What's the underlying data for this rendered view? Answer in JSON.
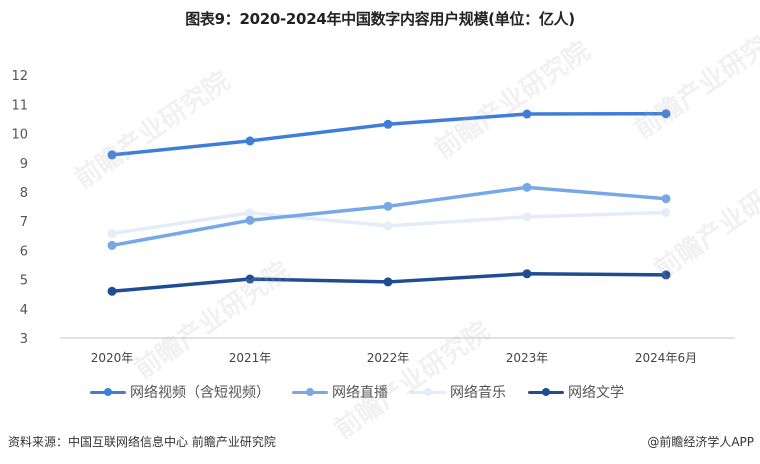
{
  "title": "图表9：2020-2024年中国数字内容用户规模(单位：亿人)",
  "chart_data": {
    "type": "line",
    "title": "图表9：2020-2024年中国数字内容用户规模(单位：亿人)",
    "xlabel": "",
    "ylabel": "亿人",
    "categories": [
      "2020年",
      "2021年",
      "2022年",
      "2023年",
      "2024年6月"
    ],
    "ylim": [
      3,
      12
    ],
    "yticks": [
      3,
      4,
      5,
      6,
      7,
      8,
      9,
      10,
      11,
      12
    ],
    "grid": false,
    "legend_position": "bottom",
    "series": [
      {
        "name": "网络视频（含短视频）",
        "color": "#3f7ed8",
        "values": [
          9.27,
          9.75,
          10.32,
          10.67,
          10.68
        ]
      },
      {
        "name": "网络直播",
        "color": "#77a8e6",
        "values": [
          6.17,
          7.03,
          7.51,
          8.16,
          7.77
        ]
      },
      {
        "name": "网络音乐",
        "color": "#e3ecf8",
        "values": [
          6.58,
          7.29,
          6.84,
          7.15,
          7.3
        ]
      },
      {
        "name": "网络文学",
        "color": "#1f4d94",
        "values": [
          4.6,
          5.02,
          4.92,
          5.2,
          5.16
        ]
      }
    ]
  },
  "footer": {
    "source": "资料来源：中国互联网络信息中心 前瞻产业研究院",
    "credit": "@前瞻经济学人APP"
  },
  "watermark": "前瞻产业研究院"
}
